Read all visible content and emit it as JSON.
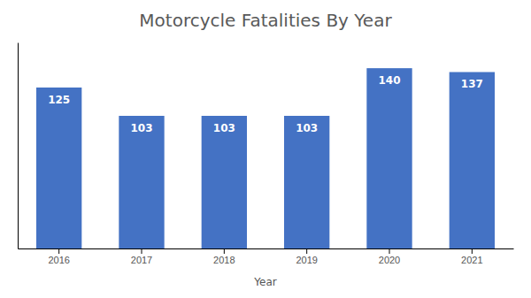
{
  "chart_data": {
    "type": "bar",
    "title": "Motorcycle Fatalities By Year",
    "xlabel": "Year",
    "categories": [
      "2016",
      "2017",
      "2018",
      "2019",
      "2020",
      "2021"
    ],
    "values": [
      125,
      103,
      103,
      103,
      140,
      137
    ],
    "color": "#4472C4",
    "ylim": [
      0,
      160
    ],
    "yticks": [],
    "data_labels": true,
    "tick_labels": "x",
    "grid": false
  }
}
